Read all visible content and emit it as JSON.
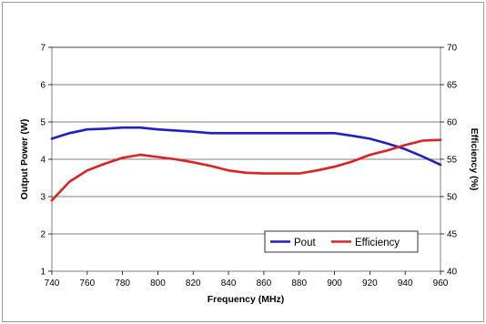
{
  "chart_data": {
    "type": "line",
    "x_axis": {
      "label": "Frequency (MHz)",
      "range": [
        740,
        960
      ],
      "ticks": [
        740,
        760,
        780,
        800,
        820,
        840,
        860,
        880,
        900,
        920,
        940,
        960
      ]
    },
    "y_axis_left": {
      "label": "Output Power (W)",
      "range": [
        1,
        7
      ],
      "ticks": [
        1,
        2,
        3,
        4,
        5,
        6,
        7
      ]
    },
    "y_axis_right": {
      "label": "Efficiency (%)",
      "range": [
        40,
        70
      ],
      "ticks": [
        40,
        45,
        50,
        55,
        60,
        65,
        70
      ]
    },
    "grid": "horizontal",
    "legend_position": "bottom-right",
    "series": [
      {
        "name": "Pout",
        "axis": "left",
        "color": "#1f1fc8",
        "x": [
          740,
          750,
          760,
          770,
          780,
          790,
          800,
          810,
          820,
          830,
          840,
          850,
          860,
          870,
          880,
          890,
          900,
          910,
          920,
          930,
          940,
          950,
          960
        ],
        "y": [
          4.55,
          4.7,
          4.8,
          4.82,
          4.85,
          4.85,
          4.8,
          4.77,
          4.74,
          4.7,
          4.7,
          4.7,
          4.7,
          4.7,
          4.7,
          4.7,
          4.7,
          4.63,
          4.55,
          4.42,
          4.27,
          4.07,
          3.85
        ]
      },
      {
        "name": "Efficiency",
        "axis": "right",
        "color": "#e02020",
        "x": [
          740,
          750,
          760,
          770,
          780,
          790,
          800,
          810,
          820,
          830,
          840,
          850,
          860,
          870,
          880,
          890,
          900,
          910,
          920,
          930,
          940,
          950,
          960
        ],
        "y": [
          49.5,
          52.0,
          53.5,
          54.4,
          55.2,
          55.6,
          55.3,
          55.0,
          54.6,
          54.1,
          53.5,
          53.2,
          53.1,
          53.1,
          53.1,
          53.5,
          54.0,
          54.7,
          55.6,
          56.2,
          56.9,
          57.5,
          57.6
        ]
      }
    ]
  }
}
